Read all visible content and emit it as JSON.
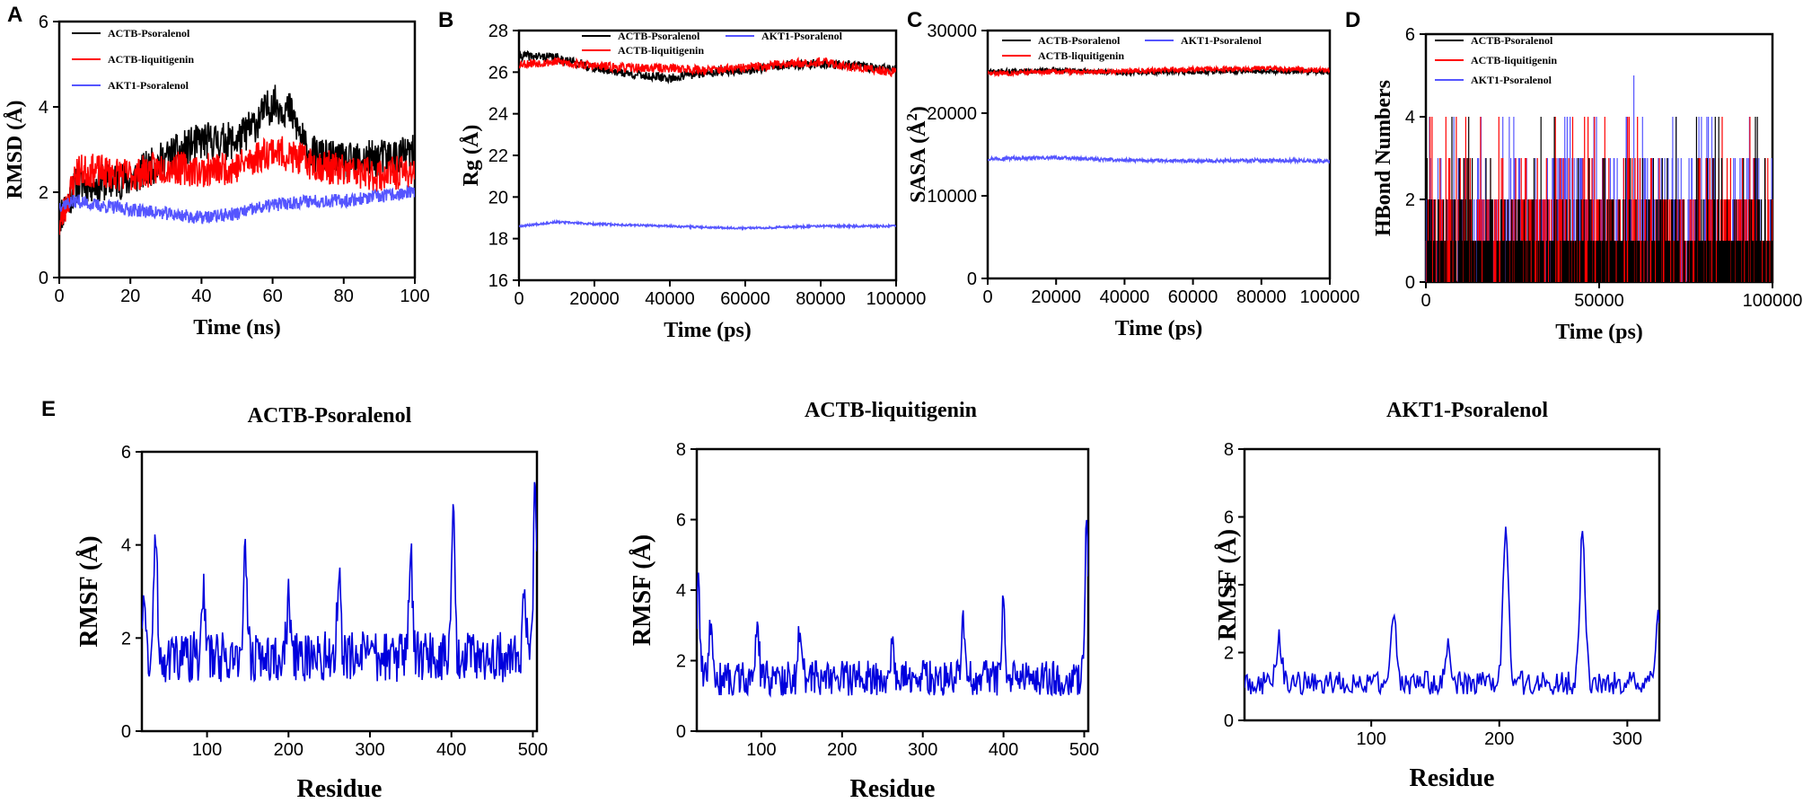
{
  "figure": {
    "panel_letters": [
      "A",
      "B",
      "C",
      "D",
      "E"
    ]
  },
  "colors": {
    "black": "#000000",
    "red": "#ff0000",
    "blue_light": "#5555ff",
    "blue_dark": "#0000dd"
  },
  "chart_data": [
    {
      "id": "A",
      "type": "line",
      "title": "",
      "xlabel": "Time (ns)",
      "ylabel": "RMSD (Å)",
      "xlim": [
        0,
        100
      ],
      "ylim": [
        0,
        6
      ],
      "xticks": [
        0,
        20,
        40,
        60,
        80,
        100
      ],
      "yticks": [
        0,
        2,
        4,
        6
      ],
      "legend": "top-left",
      "series": [
        {
          "name": "ACTB-Psoralenol",
          "color": "#000000",
          "noise": 0.45,
          "seed": 11,
          "keypoints": [
            [
              0,
              1.4
            ],
            [
              5,
              2.2
            ],
            [
              10,
              2.2
            ],
            [
              20,
              2.3
            ],
            [
              30,
              2.8
            ],
            [
              40,
              3.2
            ],
            [
              50,
              3.2
            ],
            [
              55,
              3.6
            ],
            [
              60,
              4.1
            ],
            [
              65,
              3.9
            ],
            [
              70,
              2.9
            ],
            [
              80,
              2.7
            ],
            [
              90,
              2.8
            ],
            [
              100,
              2.9
            ]
          ]
        },
        {
          "name": "ACTB-liquitigenin",
          "color": "#ff0000",
          "noise": 0.4,
          "seed": 23,
          "keypoints": [
            [
              0,
              1.2
            ],
            [
              5,
              2.5
            ],
            [
              10,
              2.5
            ],
            [
              20,
              2.4
            ],
            [
              30,
              2.6
            ],
            [
              40,
              2.5
            ],
            [
              50,
              2.6
            ],
            [
              60,
              3.0
            ],
            [
              70,
              2.7
            ],
            [
              80,
              2.5
            ],
            [
              90,
              2.4
            ],
            [
              100,
              2.5
            ]
          ]
        },
        {
          "name": "AKT1-Psoralenol",
          "color": "#5555ff",
          "noise": 0.16,
          "seed": 37,
          "keypoints": [
            [
              0,
              1.7
            ],
            [
              5,
              1.8
            ],
            [
              10,
              1.7
            ],
            [
              20,
              1.6
            ],
            [
              30,
              1.5
            ],
            [
              40,
              1.4
            ],
            [
              50,
              1.5
            ],
            [
              60,
              1.7
            ],
            [
              70,
              1.8
            ],
            [
              80,
              1.8
            ],
            [
              90,
              1.9
            ],
            [
              100,
              2.0
            ]
          ]
        }
      ]
    },
    {
      "id": "B",
      "type": "line",
      "title": "",
      "xlabel": "Time (ps)",
      "ylabel": "Rg (Å)",
      "xlim": [
        0,
        100000
      ],
      "ylim": [
        16,
        28
      ],
      "xticks": [
        0,
        20000,
        40000,
        60000,
        80000,
        100000
      ],
      "yticks": [
        16,
        18,
        20,
        22,
        24,
        26,
        28
      ],
      "legend": "top",
      "series": [
        {
          "name": "ACTB-Psoralenol",
          "color": "#000000",
          "noise": 0.22,
          "seed": 41,
          "keypoints": [
            [
              0,
              26.8
            ],
            [
              10000,
              26.7
            ],
            [
              20000,
              26.2
            ],
            [
              30000,
              25.9
            ],
            [
              40000,
              25.7
            ],
            [
              50000,
              26.0
            ],
            [
              60000,
              26.1
            ],
            [
              70000,
              26.3
            ],
            [
              80000,
              26.4
            ],
            [
              90000,
              26.3
            ],
            [
              100000,
              26.1
            ]
          ]
        },
        {
          "name": "ACTB-liquitigenin",
          "color": "#ff0000",
          "noise": 0.22,
          "seed": 53,
          "keypoints": [
            [
              0,
              26.4
            ],
            [
              10000,
              26.5
            ],
            [
              20000,
              26.3
            ],
            [
              30000,
              26.2
            ],
            [
              40000,
              26.2
            ],
            [
              50000,
              26.1
            ],
            [
              60000,
              26.2
            ],
            [
              70000,
              26.4
            ],
            [
              80000,
              26.5
            ],
            [
              90000,
              26.2
            ],
            [
              100000,
              26.0
            ]
          ]
        },
        {
          "name": "AKT1-Psoralenol",
          "color": "#5555ff",
          "noise": 0.05,
          "seed": 67,
          "keypoints": [
            [
              0,
              18.6
            ],
            [
              10000,
              18.8
            ],
            [
              20000,
              18.7
            ],
            [
              40000,
              18.6
            ],
            [
              60000,
              18.5
            ],
            [
              80000,
              18.6
            ],
            [
              100000,
              18.6
            ]
          ]
        }
      ]
    },
    {
      "id": "C",
      "type": "line",
      "title": "",
      "xlabel": "Time (ps)",
      "ylabel": "SASA (Å²)",
      "ylabel_base": "SASA (Å",
      "ylabel_sup": "2",
      "ylabel_end": ")",
      "xlim": [
        0,
        100000
      ],
      "ylim": [
        0,
        30000
      ],
      "xticks": [
        0,
        20000,
        40000,
        60000,
        80000,
        100000
      ],
      "yticks": [
        0,
        10000,
        20000,
        30000
      ],
      "legend": "top",
      "series": [
        {
          "name": "ACTB-Psoralenol",
          "color": "#000000",
          "noise": 300,
          "seed": 71,
          "keypoints": [
            [
              0,
              25000
            ],
            [
              20000,
              25200
            ],
            [
              40000,
              24900
            ],
            [
              60000,
              25000
            ],
            [
              80000,
              25100
            ],
            [
              100000,
              25000
            ]
          ]
        },
        {
          "name": "ACTB-liquitigenin",
          "color": "#ff0000",
          "noise": 300,
          "seed": 83,
          "keypoints": [
            [
              0,
              24800
            ],
            [
              20000,
              25000
            ],
            [
              40000,
              25100
            ],
            [
              60000,
              25300
            ],
            [
              80000,
              25400
            ],
            [
              100000,
              25200
            ]
          ]
        },
        {
          "name": "AKT1-Psoralenol",
          "color": "#5555ff",
          "noise": 200,
          "seed": 97,
          "keypoints": [
            [
              0,
              14500
            ],
            [
              20000,
              14600
            ],
            [
              40000,
              14300
            ],
            [
              60000,
              14200
            ],
            [
              80000,
              14300
            ],
            [
              100000,
              14200
            ]
          ]
        }
      ]
    },
    {
      "id": "D",
      "type": "bar",
      "title": "",
      "xlabel": "Time (ps)",
      "ylabel": "HBond Numbers",
      "xlim": [
        0,
        100000
      ],
      "ylim": [
        0,
        6
      ],
      "xticks": [
        0,
        50000,
        100000
      ],
      "yticks": [
        0,
        2,
        4,
        6
      ],
      "legend": "top-left",
      "series": [
        {
          "name": "ACTB-Psoralenol",
          "color": "#000000",
          "seed": 101,
          "levels": [
            [
              0,
              0.45
            ],
            [
              1,
              0.35
            ],
            [
              2,
              0.14
            ],
            [
              3,
              0.05
            ],
            [
              4,
              0.01
            ]
          ]
        },
        {
          "name": "ACTB-liquitigenin",
          "color": "#ff0000",
          "seed": 113,
          "levels": [
            [
              0,
              0.3
            ],
            [
              1,
              0.35
            ],
            [
              2,
              0.25
            ],
            [
              3,
              0.08
            ],
            [
              4,
              0.02
            ]
          ]
        },
        {
          "name": "AKT1-Psoralenol",
          "color": "#5555ff",
          "seed": 127,
          "levels": [
            [
              0,
              0.25
            ],
            [
              1,
              0.35
            ],
            [
              2,
              0.25
            ],
            [
              3,
              0.12
            ],
            [
              4,
              0.03
            ]
          ],
          "max": [
            60000,
            5
          ]
        }
      ]
    },
    {
      "id": "E1",
      "type": "line",
      "title": "ACTB-Psoralenol",
      "xlabel": "Residue",
      "ylabel": "RMSF (Å)",
      "xlim": [
        20,
        505
      ],
      "ylim": [
        0,
        6
      ],
      "xticks": [
        100,
        200,
        300,
        400,
        500
      ],
      "yticks": [
        0,
        2,
        4,
        6
      ],
      "series": [
        {
          "name": "RMSF",
          "color": "#0000dd",
          "noise": 0.55,
          "seed": 131,
          "base": 1.6,
          "peaks": [
            [
              22,
              2.9
            ],
            [
              37,
              4.2
            ],
            [
              95,
              3.1
            ],
            [
              147,
              3.8
            ],
            [
              200,
              2.8
            ],
            [
              262,
              3.6
            ],
            [
              350,
              3.9
            ],
            [
              402,
              4.5
            ],
            [
              490,
              3.0
            ],
            [
              503,
              5.3
            ]
          ]
        }
      ]
    },
    {
      "id": "E2",
      "type": "line",
      "title": "ACTB-liquitigenin",
      "xlabel": "Residue",
      "ylabel": "RMSF (Å)",
      "xlim": [
        20,
        505
      ],
      "ylim": [
        0,
        8
      ],
      "xticks": [
        100,
        200,
        300,
        400,
        500
      ],
      "yticks": [
        0,
        2,
        4,
        6,
        8
      ],
      "series": [
        {
          "name": "RMSF",
          "color": "#0000dd",
          "noise": 0.5,
          "seed": 139,
          "base": 1.5,
          "peaks": [
            [
              22,
              4.0
            ],
            [
              37,
              2.8
            ],
            [
              95,
              3.0
            ],
            [
              148,
              3.1
            ],
            [
              262,
              2.6
            ],
            [
              350,
              3.2
            ],
            [
              400,
              3.6
            ],
            [
              503,
              5.8
            ]
          ]
        }
      ]
    },
    {
      "id": "E3",
      "type": "line",
      "title": "AKT1-Psoralenol",
      "xlabel": "Residue",
      "ylabel": "RMSF (Å)",
      "xlim": [
        1,
        325
      ],
      "ylim": [
        0,
        8
      ],
      "xticks": [
        100,
        200,
        300
      ],
      "yticks": [
        0,
        2,
        4,
        6,
        8
      ],
      "series": [
        {
          "name": "RMSF",
          "color": "#0000dd",
          "noise": 0.35,
          "seed": 149,
          "base": 1.1,
          "peaks": [
            [
              28,
              2.4
            ],
            [
              117,
              3.3
            ],
            [
              160,
              2.3
            ],
            [
              205,
              5.8
            ],
            [
              265,
              5.5
            ],
            [
              325,
              3.2
            ]
          ]
        }
      ]
    }
  ]
}
